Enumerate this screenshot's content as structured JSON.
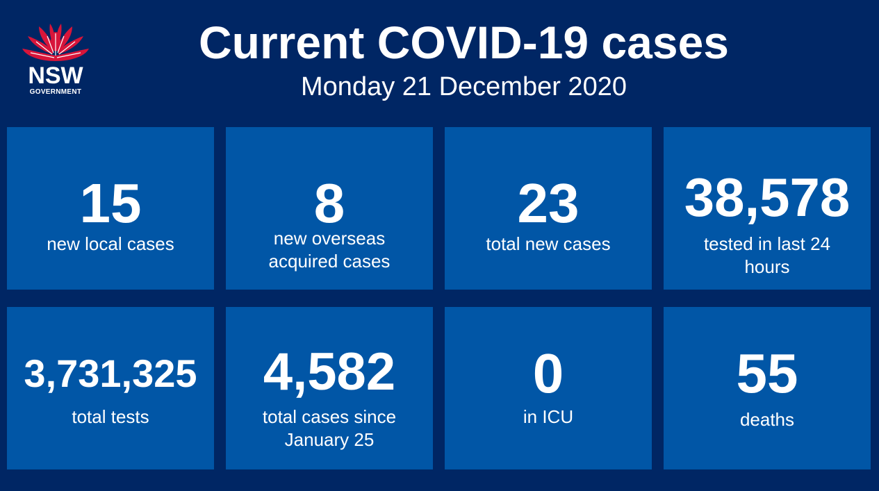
{
  "header": {
    "title": "Current COVID-19 cases",
    "date": "Monday 21 December 2020"
  },
  "logo": {
    "name": "NSW",
    "subtext": "GOVERNMENT",
    "icon": "waratah-icon",
    "flower_color": "#D7153A"
  },
  "colors": {
    "background": "#002664",
    "tile": "#0156A6",
    "text": "#FFFFFF"
  },
  "stats": [
    {
      "value": "15",
      "label_lines": [
        "new local cases"
      ]
    },
    {
      "value": "8",
      "label_lines": [
        "new overseas",
        "acquired cases"
      ]
    },
    {
      "value": "23",
      "label_lines": [
        "total new cases"
      ]
    },
    {
      "value": "38,578",
      "label_lines": [
        "tested in last 24",
        "hours"
      ]
    },
    {
      "value": "3,731,325",
      "label_lines": [
        "total tests"
      ]
    },
    {
      "value": "4,582",
      "label_lines": [
        "total cases since",
        "January 25"
      ]
    },
    {
      "value": "0",
      "label_lines": [
        "in ICU"
      ]
    },
    {
      "value": "55",
      "label_lines": [
        "deaths"
      ]
    }
  ]
}
